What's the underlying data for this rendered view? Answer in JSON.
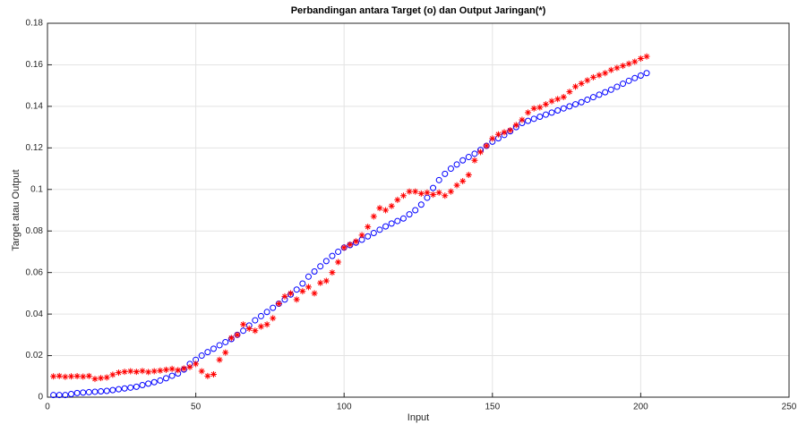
{
  "chart_data": {
    "type": "scatter",
    "title": "Perbandingan antara Target (o) dan Output Jaringan(*)",
    "x_label": "Input",
    "y_label": "Target atau Output",
    "x": [
      2,
      4,
      6,
      8,
      10,
      12,
      14,
      16,
      18,
      20,
      22,
      24,
      26,
      28,
      30,
      32,
      34,
      36,
      38,
      40,
      42,
      44,
      46,
      48,
      50,
      52,
      54,
      56,
      58,
      60,
      62,
      64,
      66,
      68,
      70,
      72,
      74,
      76,
      78,
      80,
      82,
      84,
      86,
      88,
      90,
      92,
      94,
      96,
      98,
      100,
      102,
      104,
      106,
      108,
      110,
      112,
      114,
      116,
      118,
      120,
      122,
      124,
      126,
      128,
      130,
      132,
      134,
      136,
      138,
      140,
      142,
      144,
      146,
      148,
      150,
      152,
      154,
      156,
      158,
      160,
      162,
      164,
      166,
      168,
      170,
      172,
      174,
      176,
      178,
      180,
      182,
      184,
      186,
      188,
      190,
      192,
      194,
      196,
      198,
      200,
      202
    ],
    "series": [
      {
        "name": "Target",
        "marker": "o",
        "color": "#0000ff",
        "values": [
          0.001,
          0.001,
          0.001,
          0.0015,
          0.002,
          0.0022,
          0.0024,
          0.0026,
          0.0028,
          0.003,
          0.0034,
          0.0038,
          0.0042,
          0.0046,
          0.005,
          0.0058,
          0.0065,
          0.0072,
          0.008,
          0.0091,
          0.0103,
          0.0114,
          0.0133,
          0.016,
          0.018,
          0.02,
          0.0217,
          0.0233,
          0.025,
          0.0265,
          0.028,
          0.03,
          0.032,
          0.0345,
          0.037,
          0.039,
          0.041,
          0.043,
          0.045,
          0.047,
          0.0494,
          0.0518,
          0.0547,
          0.058,
          0.0605,
          0.063,
          0.0655,
          0.068,
          0.07,
          0.072,
          0.0732,
          0.0744,
          0.0758,
          0.0774,
          0.079,
          0.0806,
          0.0822,
          0.0836,
          0.0848,
          0.086,
          0.088,
          0.09,
          0.0927,
          0.096,
          0.1007,
          0.1045,
          0.1075,
          0.11,
          0.112,
          0.114,
          0.1156,
          0.1172,
          0.119,
          0.121,
          0.123,
          0.1246,
          0.1262,
          0.128,
          0.13,
          0.132,
          0.133,
          0.134,
          0.135,
          0.136,
          0.137,
          0.138,
          0.139,
          0.14,
          0.141,
          0.142,
          0.1432,
          0.1444,
          0.1456,
          0.1468,
          0.148,
          0.1494,
          0.1509,
          0.1523,
          0.1536,
          0.1548,
          0.156
        ]
      },
      {
        "name": "Output Jaringan",
        "marker": "*",
        "color": "#ff0000",
        "values": [
          0.01,
          0.0102,
          0.0098,
          0.01,
          0.0101,
          0.0099,
          0.0102,
          0.0088,
          0.0092,
          0.0095,
          0.0108,
          0.0118,
          0.0122,
          0.0125,
          0.0122,
          0.0126,
          0.0121,
          0.0125,
          0.0128,
          0.0132,
          0.0136,
          0.013,
          0.0138,
          0.0145,
          0.016,
          0.0125,
          0.0102,
          0.011,
          0.018,
          0.0215,
          0.0285,
          0.03,
          0.035,
          0.033,
          0.032,
          0.034,
          0.035,
          0.038,
          0.045,
          0.0485,
          0.05,
          0.047,
          0.051,
          0.053,
          0.05,
          0.055,
          0.056,
          0.06,
          0.065,
          0.072,
          0.0735,
          0.075,
          0.078,
          0.082,
          0.087,
          0.091,
          0.09,
          0.092,
          0.095,
          0.097,
          0.099,
          0.099,
          0.098,
          0.0985,
          0.0975,
          0.0985,
          0.097,
          0.099,
          0.102,
          0.104,
          0.107,
          0.114,
          0.118,
          0.121,
          0.1245,
          0.1265,
          0.1275,
          0.1285,
          0.131,
          0.1335,
          0.137,
          0.139,
          0.1395,
          0.141,
          0.1425,
          0.1435,
          0.1445,
          0.147,
          0.1495,
          0.151,
          0.1525,
          0.154,
          0.155,
          0.156,
          0.1575,
          0.1585,
          0.1595,
          0.1605,
          0.1615,
          0.163,
          0.164
        ]
      }
    ],
    "xlim": [
      0,
      250
    ],
    "xticks": [
      0,
      50,
      100,
      150,
      200,
      250
    ],
    "ylim": [
      0,
      0.18
    ],
    "yticks": [
      0,
      0.02,
      0.04,
      0.06,
      0.08,
      0.1,
      0.12,
      0.14,
      0.16,
      0.18
    ],
    "grid": true
  }
}
